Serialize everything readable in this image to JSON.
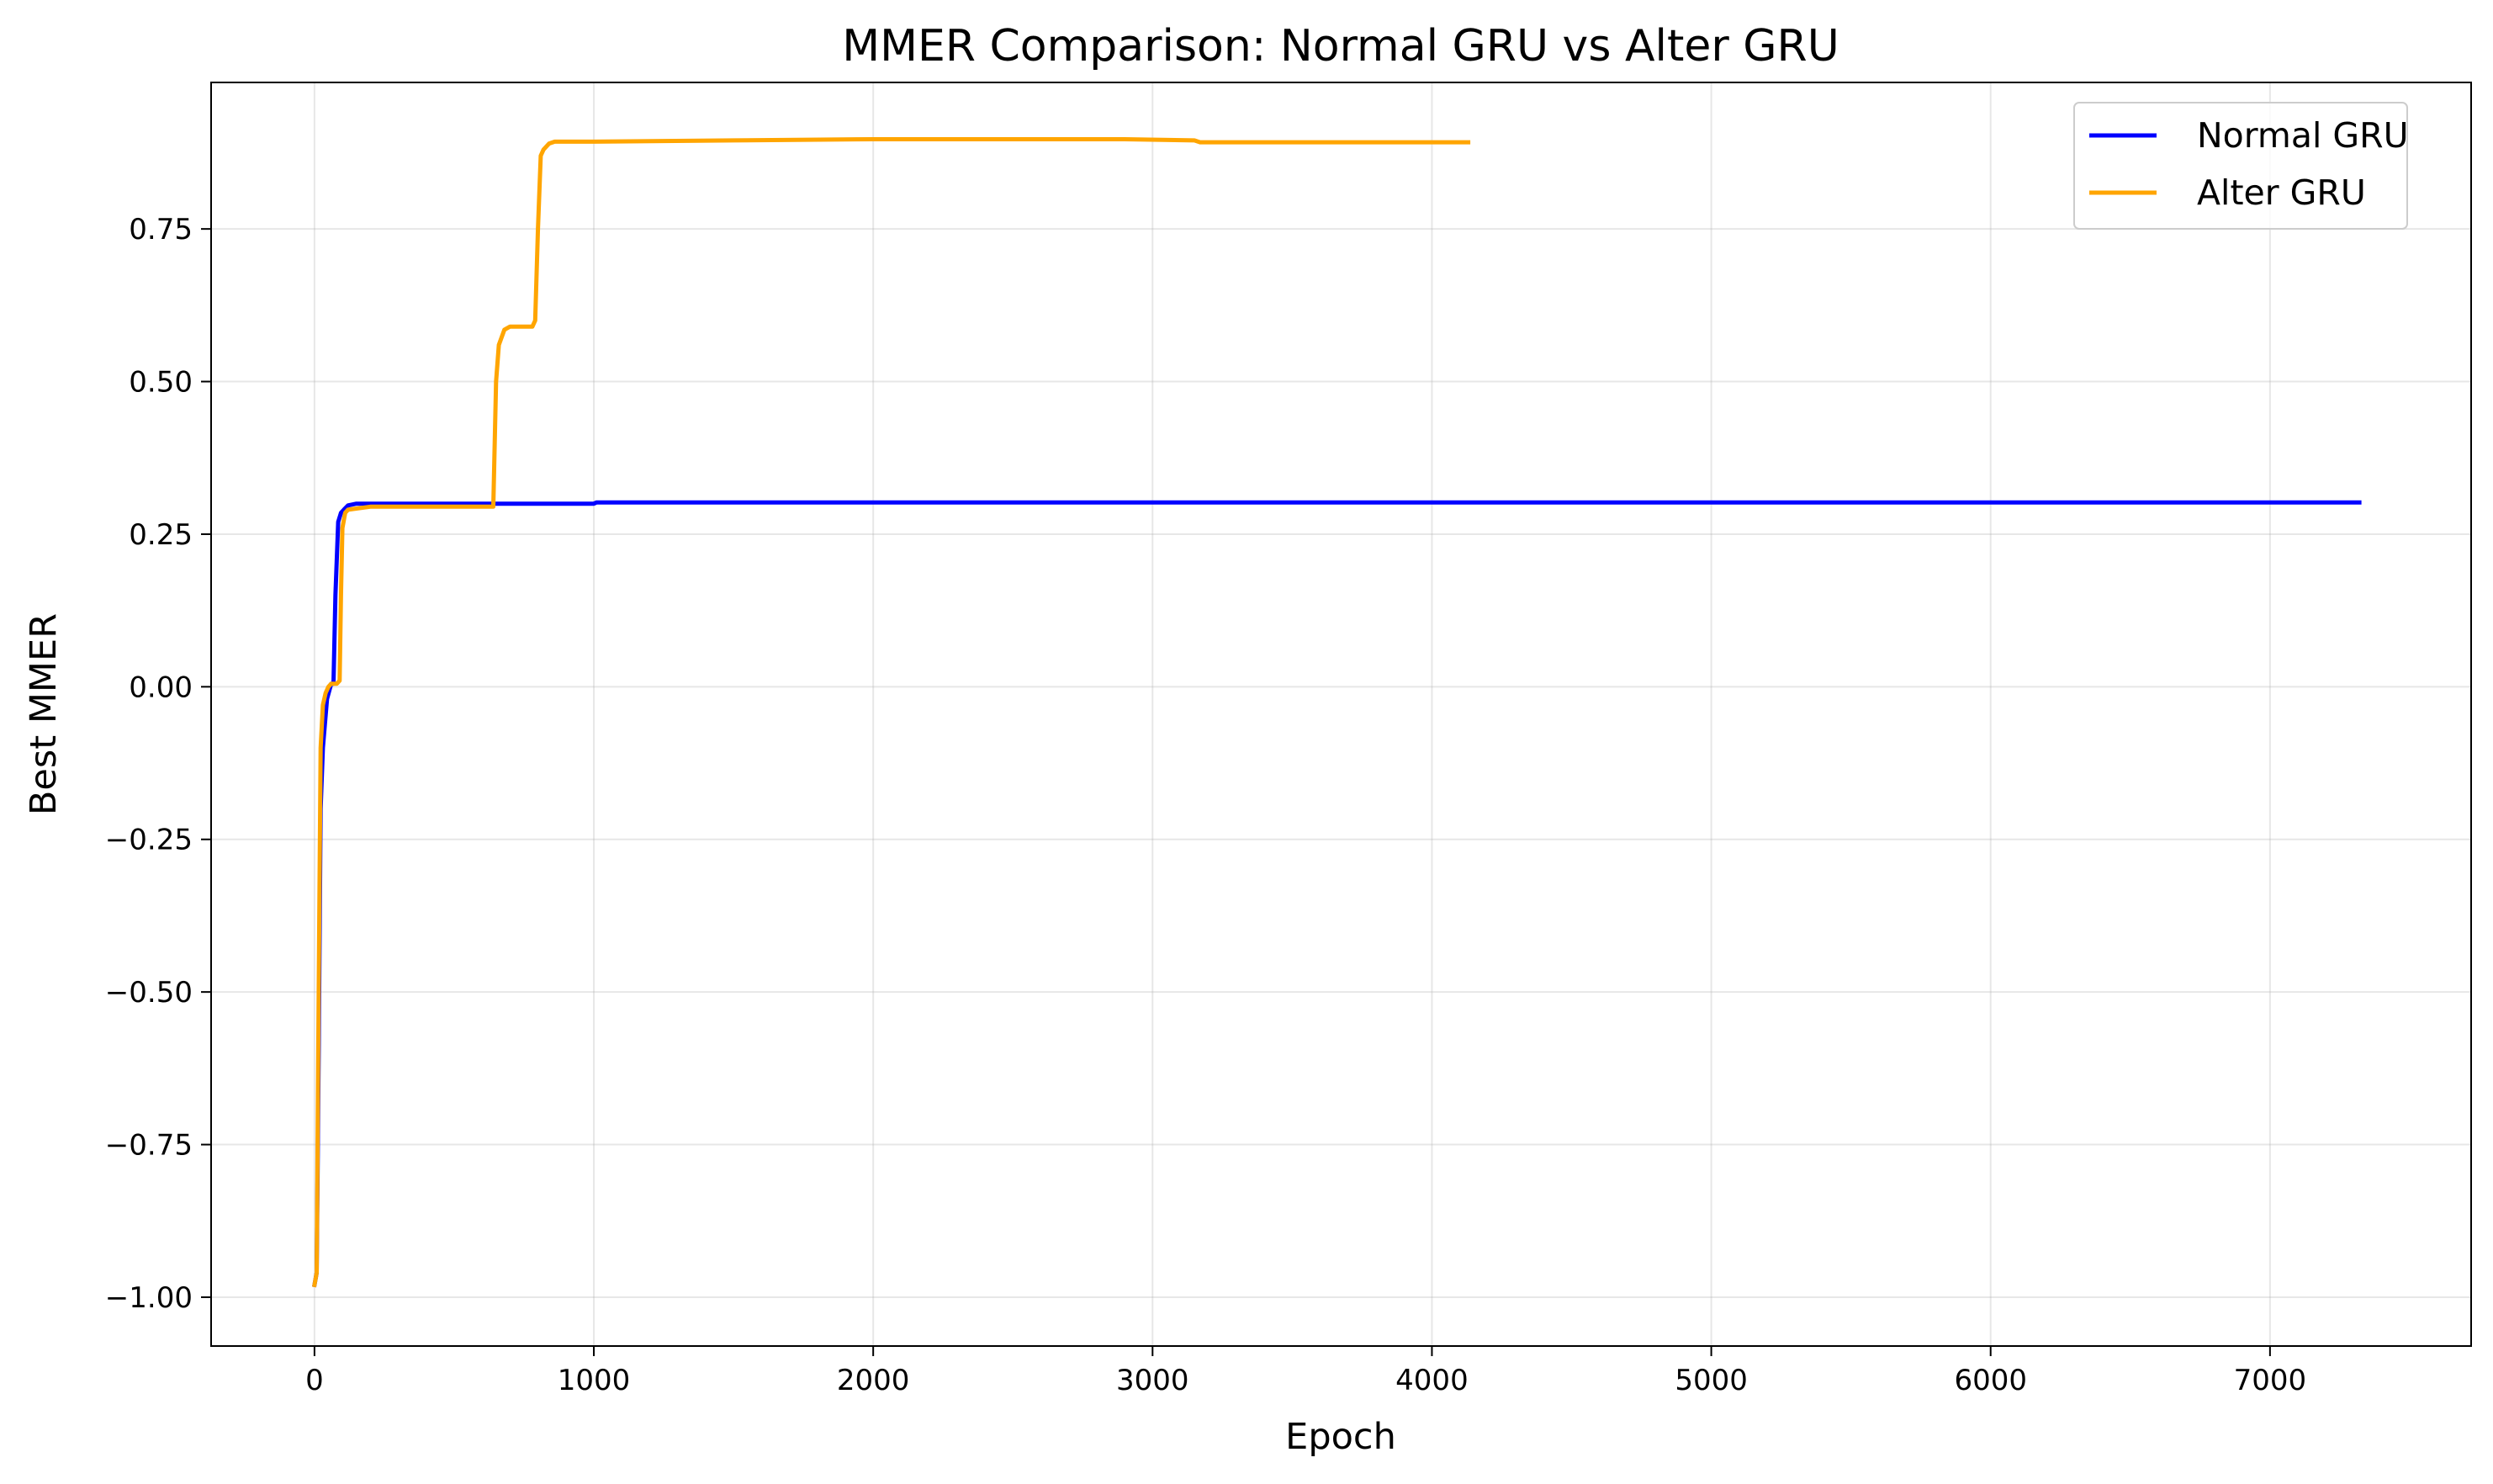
{
  "chart_data": {
    "type": "line",
    "title": "MMER Comparison: Normal GRU vs Alter GRU",
    "xlabel": "Epoch",
    "ylabel": "Best MMER",
    "xlim": [
      -370,
      7720
    ],
    "ylim": [
      -1.08,
      0.99
    ],
    "xticks": [
      0,
      1000,
      2000,
      3000,
      4000,
      5000,
      6000,
      7000
    ],
    "xtick_labels": [
      "0",
      "1000",
      "2000",
      "3000",
      "4000",
      "5000",
      "6000",
      "7000"
    ],
    "yticks": [
      -1.0,
      -0.75,
      -0.5,
      -0.25,
      0.0,
      0.25,
      0.5,
      0.75
    ],
    "ytick_labels": [
      "−1.00",
      "−0.75",
      "−0.50",
      "−0.25",
      "0.00",
      "0.25",
      "0.50",
      "0.75"
    ],
    "grid": true,
    "legend_position": "top-right",
    "series": [
      {
        "name": "Normal GRU",
        "color": "#0000ff",
        "x": [
          0,
          8,
          15,
          22,
          30,
          45,
          60,
          68,
          75,
          85,
          95,
          105,
          120,
          150,
          200,
          400,
          600,
          800,
          1000,
          1010,
          2000,
          3000,
          4000,
          5000,
          6000,
          7000,
          7320
        ],
        "y": [
          -0.98,
          -0.96,
          -0.6,
          -0.2,
          -0.1,
          -0.02,
          0.005,
          0.005,
          0.15,
          0.27,
          0.285,
          0.29,
          0.297,
          0.3,
          0.3,
          0.3,
          0.3,
          0.3,
          0.3,
          0.302,
          0.302,
          0.302,
          0.302,
          0.302,
          0.302,
          0.302,
          0.302
        ]
      },
      {
        "name": "Alter GRU",
        "color": "#ffa500",
        "x": [
          0,
          8,
          15,
          22,
          30,
          40,
          50,
          60,
          80,
          90,
          95,
          100,
          110,
          120,
          200,
          400,
          640,
          650,
          660,
          680,
          700,
          780,
          790,
          800,
          810,
          820,
          840,
          860,
          1000,
          1500,
          2000,
          2900,
          3150,
          3170,
          3500,
          4000,
          4130
        ],
        "y": [
          -0.98,
          -0.96,
          -0.5,
          -0.1,
          -0.03,
          -0.01,
          0.0,
          0.005,
          0.005,
          0.01,
          0.15,
          0.26,
          0.285,
          0.29,
          0.295,
          0.295,
          0.295,
          0.5,
          0.56,
          0.585,
          0.59,
          0.59,
          0.6,
          0.75,
          0.87,
          0.88,
          0.89,
          0.893,
          0.893,
          0.895,
          0.897,
          0.897,
          0.895,
          0.892,
          0.892,
          0.892,
          0.892
        ]
      }
    ]
  }
}
